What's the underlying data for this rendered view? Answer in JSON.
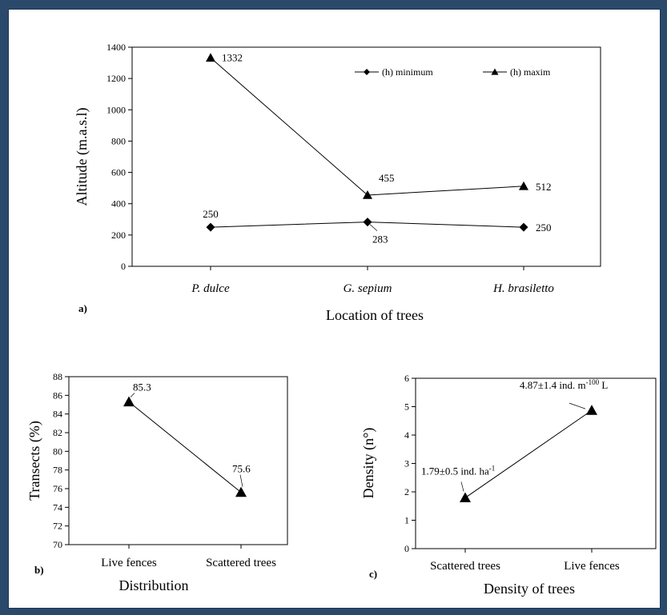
{
  "chart_data": [
    {
      "id": "a",
      "type": "line",
      "panel_label": "a)",
      "title": "",
      "xlabel": "Location of trees",
      "ylabel": "Altitude (m.a.s.l)",
      "categories": [
        "P. dulce",
        "G. sepium",
        "H. brasiletto"
      ],
      "ylim": [
        0,
        1400
      ],
      "yticks": [
        0,
        200,
        400,
        600,
        800,
        1000,
        1200,
        1400
      ],
      "legend_position": "top-right",
      "series": [
        {
          "name": "(h) minimum",
          "marker": "diamond",
          "values": [
            250,
            283,
            250
          ],
          "labels": [
            "250",
            "283",
            "250"
          ]
        },
        {
          "name": "(h) maxim",
          "marker": "triangle",
          "values": [
            1332,
            455,
            512
          ],
          "labels": [
            "1332",
            "455",
            "512"
          ]
        }
      ]
    },
    {
      "id": "b",
      "type": "line",
      "panel_label": "b)",
      "title": "",
      "xlabel": "Distribution",
      "ylabel": "Transects (%)",
      "categories": [
        "Live fences",
        "Scattered trees"
      ],
      "ylim": [
        70,
        88
      ],
      "yticks": [
        70,
        72,
        74,
        76,
        78,
        80,
        82,
        84,
        86,
        88
      ],
      "series": [
        {
          "marker": "triangle",
          "values": [
            85.3,
            75.6
          ],
          "labels": [
            "85.3",
            "75.6"
          ]
        }
      ]
    },
    {
      "id": "c",
      "type": "line",
      "panel_label": "c)",
      "title": "",
      "xlabel": "Density of trees",
      "ylabel": "Density (n°)",
      "categories": [
        "Scattered trees",
        "Live fences"
      ],
      "ylim": [
        0,
        6
      ],
      "yticks": [
        0,
        1,
        2,
        3,
        4,
        5,
        6
      ],
      "series": [
        {
          "marker": "triangle",
          "values": [
            1.79,
            4.87
          ],
          "labels": [
            {
              "main": "1.79±0.5 ind. ha",
              "sup": "-1",
              "tail": ""
            },
            {
              "main": "4.87±1.4 ind. m",
              "sup": "-100",
              "tail": " L"
            }
          ]
        }
      ]
    }
  ]
}
